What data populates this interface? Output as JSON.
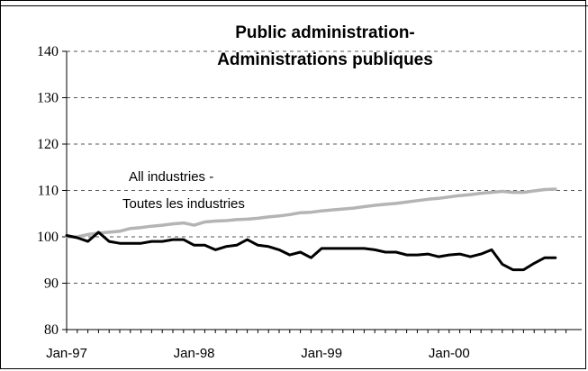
{
  "chart_data": {
    "type": "line",
    "title": [
      "Public administration-",
      "Administrations publiques"
    ],
    "xlabel": "",
    "ylabel": "",
    "ylim": [
      80,
      140
    ],
    "yticks": [
      80,
      90,
      100,
      110,
      120,
      130,
      140
    ],
    "xtick_labels": [
      "Jan-97",
      "Jan-98",
      "Jan-99",
      "Jan-00"
    ],
    "months": 47,
    "grid": "horizontal dashed",
    "annotation": [
      "All industries -",
      "Toutes les industries"
    ],
    "series": [
      {
        "color": "#000000",
        "values": [
          100.3,
          99.8,
          99.0,
          101.0,
          99.0,
          98.6,
          98.6,
          98.6,
          99.0,
          99.0,
          99.4,
          99.4,
          98.2,
          98.2,
          97.2,
          97.9,
          98.2,
          99.4,
          98.2,
          97.9,
          97.2,
          96.1,
          96.7,
          95.5,
          97.5,
          97.5,
          97.5,
          97.5,
          97.5,
          97.2,
          96.7,
          96.7,
          96.1,
          96.1,
          96.3,
          95.7,
          96.1,
          96.3,
          95.7,
          96.3,
          97.2,
          94.1,
          92.9,
          92.9,
          94.3,
          95.5,
          95.5
        ]
      },
      {
        "color": "#b4b4b4",
        "values": [
          100.0,
          100.0,
          100.5,
          100.8,
          101.0,
          101.2,
          101.8,
          102.0,
          102.3,
          102.5,
          102.8,
          103.0,
          102.5,
          103.2,
          103.4,
          103.5,
          103.7,
          103.8,
          104.0,
          104.3,
          104.5,
          104.8,
          105.2,
          105.3,
          105.6,
          105.8,
          106.0,
          106.2,
          106.5,
          106.8,
          107.0,
          107.2,
          107.5,
          107.8,
          108.1,
          108.3,
          108.6,
          108.9,
          109.1,
          109.4,
          109.6,
          109.8,
          109.6,
          109.6,
          109.9,
          110.2,
          110.3
        ]
      }
    ]
  }
}
